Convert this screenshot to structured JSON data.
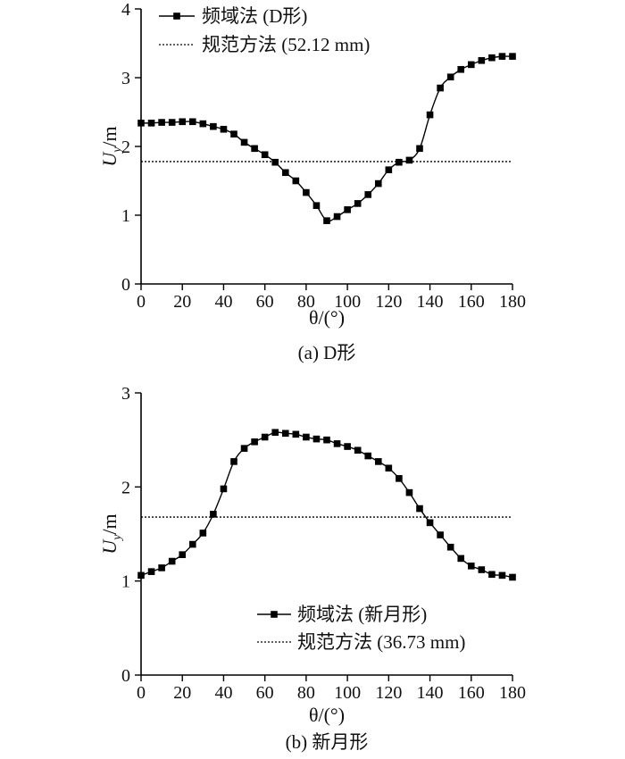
{
  "chart_data": [
    {
      "type": "line",
      "caption": "(a) D形",
      "xlabel": "θ/(°)",
      "ylabel": "U_y/m",
      "ylabel_main": "U",
      "ylabel_sub": "y",
      "ylabel_unit": "/m",
      "xlim": [
        0,
        180
      ],
      "ylim": [
        0,
        4
      ],
      "xticks": [
        0,
        20,
        40,
        60,
        80,
        100,
        120,
        140,
        160,
        180
      ],
      "yticks": [
        0,
        1,
        2,
        3,
        4
      ],
      "grid": false,
      "legend_position": "top-left",
      "colors": {
        "series": "#000000",
        "reference": "#000000"
      },
      "series": [
        {
          "name": "频域法 (D形)",
          "x": [
            0,
            5,
            10,
            15,
            20,
            25,
            30,
            35,
            40,
            45,
            50,
            55,
            60,
            65,
            70,
            75,
            80,
            85,
            90,
            95,
            100,
            105,
            110,
            115,
            120,
            125,
            130,
            135,
            140,
            145,
            150,
            155,
            160,
            165,
            170,
            175,
            180
          ],
          "values": [
            2.34,
            2.34,
            2.35,
            2.35,
            2.36,
            2.36,
            2.33,
            2.29,
            2.25,
            2.18,
            2.06,
            1.97,
            1.88,
            1.77,
            1.62,
            1.5,
            1.33,
            1.14,
            0.92,
            0.98,
            1.08,
            1.17,
            1.3,
            1.46,
            1.66,
            1.77,
            1.8,
            1.97,
            2.46,
            2.85,
            3.01,
            3.12,
            3.19,
            3.25,
            3.29,
            3.31,
            3.31
          ]
        },
        {
          "name": "规范方法 (52.12 mm)",
          "kind": "reference",
          "value": 1.78
        }
      ]
    },
    {
      "type": "line",
      "caption": "(b) 新月形",
      "xlabel": "θ/(°)",
      "ylabel": "U_y/m",
      "ylabel_main": "U",
      "ylabel_sub": "y",
      "ylabel_unit": "/m",
      "xlim": [
        0,
        180
      ],
      "ylim": [
        0,
        3
      ],
      "xticks": [
        0,
        20,
        40,
        60,
        80,
        100,
        120,
        140,
        160,
        180
      ],
      "yticks": [
        0,
        1,
        2,
        3
      ],
      "grid": false,
      "legend_position": "bottom-right",
      "colors": {
        "series": "#000000",
        "reference": "#000000"
      },
      "series": [
        {
          "name": "频域法 (新月形)",
          "x": [
            0,
            5,
            10,
            15,
            20,
            25,
            30,
            35,
            40,
            45,
            50,
            55,
            60,
            65,
            70,
            75,
            80,
            85,
            90,
            95,
            100,
            105,
            110,
            115,
            120,
            125,
            130,
            135,
            140,
            145,
            150,
            155,
            160,
            165,
            170,
            175,
            180
          ],
          "values": [
            1.06,
            1.1,
            1.14,
            1.21,
            1.28,
            1.39,
            1.51,
            1.71,
            1.98,
            2.27,
            2.41,
            2.48,
            2.53,
            2.58,
            2.57,
            2.56,
            2.53,
            2.51,
            2.5,
            2.46,
            2.43,
            2.39,
            2.33,
            2.27,
            2.2,
            2.09,
            1.94,
            1.77,
            1.62,
            1.49,
            1.36,
            1.24,
            1.16,
            1.12,
            1.07,
            1.06,
            1.04
          ]
        },
        {
          "name": "规范方法 (36.73 mm)",
          "kind": "reference",
          "value": 1.68
        }
      ]
    }
  ]
}
